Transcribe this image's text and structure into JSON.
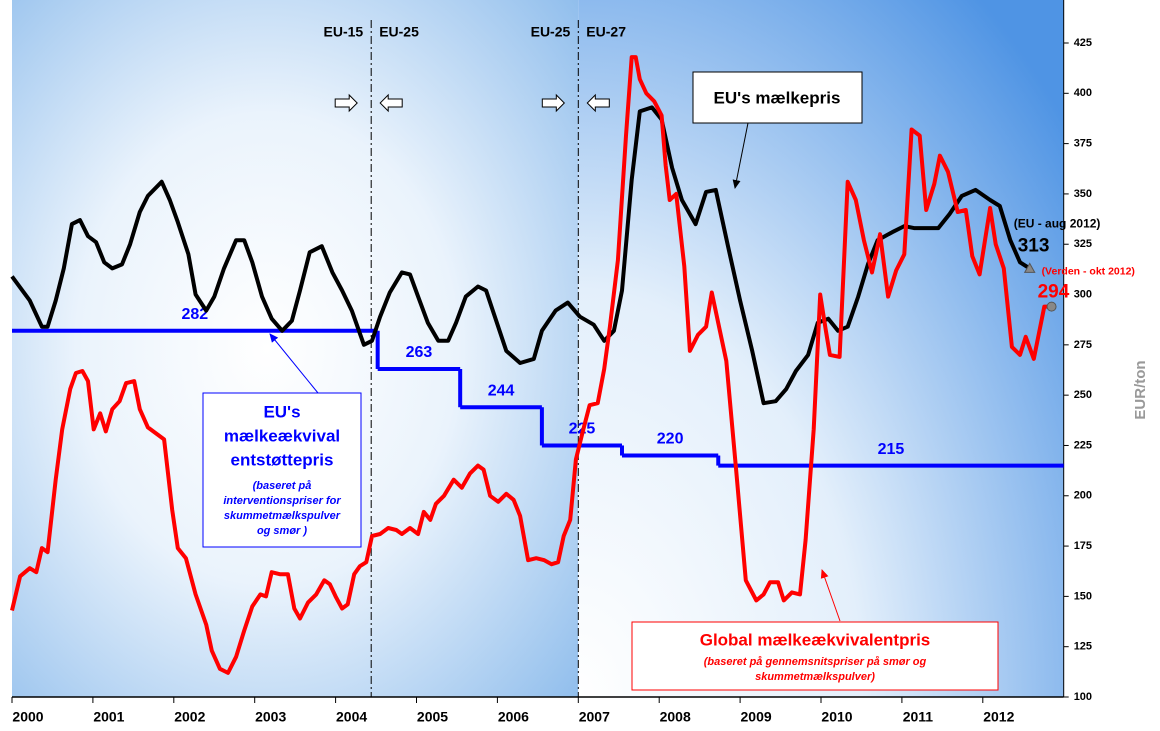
{
  "chart_data": {
    "type": "line",
    "xlim": [
      2000,
      2013
    ],
    "ylim": [
      100,
      425
    ],
    "xticks": [
      2000,
      2001,
      2002,
      2003,
      2004,
      2005,
      2006,
      2007,
      2008,
      2009,
      2010,
      2011,
      2012
    ],
    "yticks": [
      100,
      125,
      150,
      175,
      200,
      225,
      250,
      275,
      300,
      325,
      350,
      375,
      400,
      425
    ],
    "y_label": "EUR/ton",
    "series": [
      {
        "name": "EU's mælkepris",
        "color": "#000000",
        "x": [
          2000.0,
          2000.22,
          2000.37,
          2000.44,
          2000.54,
          2000.64,
          2000.74,
          2000.84,
          2000.94,
          2001.04,
          2001.14,
          2001.24,
          2001.36,
          2001.46,
          2001.58,
          2001.68,
          2001.85,
          2001.95,
          2002.05,
          2002.18,
          2002.27,
          2002.4,
          2002.5,
          2002.62,
          2002.77,
          2002.87,
          2002.97,
          2003.09,
          2003.21,
          2003.34,
          2003.46,
          2003.56,
          2003.68,
          2003.83,
          2003.96,
          2004.08,
          2004.2,
          2004.35,
          2004.45,
          2004.55,
          2004.67,
          2004.82,
          2004.92,
          2005.02,
          2005.14,
          2005.27,
          2005.39,
          2005.49,
          2005.61,
          2005.76,
          2005.86,
          2005.96,
          2006.11,
          2006.28,
          2006.45,
          2006.55,
          2006.72,
          2006.87,
          2007.02,
          2007.19,
          2007.32,
          2007.44,
          2007.54,
          2007.66,
          2007.76,
          2007.91,
          2008.03,
          2008.16,
          2008.28,
          2008.45,
          2008.58,
          2008.7,
          2008.85,
          2009.0,
          2009.15,
          2009.29,
          2009.44,
          2009.57,
          2009.69,
          2009.84,
          2009.96,
          2010.09,
          2010.21,
          2010.33,
          2010.46,
          2010.58,
          2010.7,
          2010.88,
          2011.03,
          2011.15,
          2011.32,
          2011.45,
          2011.59,
          2011.74,
          2011.91,
          2012.09,
          2012.21,
          2012.34,
          2012.46,
          2012.58
        ],
        "values": [
          309,
          297,
          284,
          284,
          297,
          313,
          335,
          337,
          329,
          326,
          316,
          313,
          315,
          325,
          341,
          349,
          356,
          347,
          336,
          320,
          300,
          292,
          299,
          313,
          327,
          327,
          316,
          299,
          288,
          282,
          287,
          302,
          321,
          324,
          311,
          302,
          292,
          275,
          277,
          289,
          301,
          311,
          310,
          299,
          286,
          277,
          277,
          286,
          299,
          304,
          302,
          290,
          272,
          266,
          268,
          282,
          292,
          296,
          289,
          285,
          277,
          282,
          302,
          357,
          391,
          393,
          387,
          363,
          347,
          335,
          351,
          352,
          324,
          297,
          272,
          246,
          247,
          253,
          262,
          270,
          286,
          288,
          282,
          284,
          299,
          315,
          327,
          331,
          334,
          333,
          333,
          333,
          340,
          349,
          352,
          347,
          344,
          327,
          316,
          313
        ]
      },
      {
        "name": "Global mælkeækvivalentpris",
        "color": "#ff0000",
        "note_lines": [
          "(baseret på gennemsnitspriser på smør og",
          "skummetmælkspulver)"
        ],
        "x": [
          2000.0,
          2000.1,
          2000.22,
          2000.3,
          2000.37,
          2000.44,
          2000.54,
          2000.62,
          2000.72,
          2000.79,
          2000.87,
          2000.94,
          2001.01,
          2001.09,
          2001.16,
          2001.24,
          2001.33,
          2001.41,
          2001.51,
          2001.58,
          2001.68,
          2001.78,
          2001.88,
          2001.98,
          2002.05,
          2002.15,
          2002.27,
          2002.4,
          2002.47,
          2002.57,
          2002.67,
          2002.77,
          2002.87,
          2002.97,
          2003.07,
          2003.14,
          2003.21,
          2003.31,
          2003.41,
          2003.49,
          2003.56,
          2003.66,
          2003.76,
          2003.86,
          2003.93,
          2004.0,
          2004.08,
          2004.15,
          2004.23,
          2004.3,
          2004.38,
          2004.45,
          2004.55,
          2004.65,
          2004.75,
          2004.82,
          2004.92,
          2005.02,
          2005.09,
          2005.17,
          2005.24,
          2005.34,
          2005.46,
          2005.56,
          2005.66,
          2005.76,
          2005.83,
          2005.91,
          2006.01,
          2006.11,
          2006.2,
          2006.28,
          2006.38,
          2006.48,
          2006.58,
          2006.67,
          2006.75,
          2006.82,
          2006.9,
          2006.97,
          2007.05,
          2007.14,
          2007.24,
          2007.32,
          2007.39,
          2007.49,
          2007.59,
          2007.66,
          2007.71,
          2007.76,
          2007.84,
          2007.94,
          2008.03,
          2008.08,
          2008.13,
          2008.21,
          2008.31,
          2008.38,
          2008.48,
          2008.58,
          2008.65,
          2008.75,
          2008.83,
          2008.95,
          2009.07,
          2009.2,
          2009.29,
          2009.37,
          2009.47,
          2009.54,
          2009.64,
          2009.74,
          2009.81,
          2009.91,
          2009.99,
          2010.06,
          2010.11,
          2010.23,
          2010.33,
          2010.43,
          2010.53,
          2010.63,
          2010.73,
          2010.83,
          2010.93,
          2011.03,
          2011.12,
          2011.22,
          2011.3,
          2011.4,
          2011.47,
          2011.57,
          2011.69,
          2011.79,
          2011.87,
          2011.96,
          2012.09,
          2012.16,
          2012.26,
          2012.36,
          2012.46,
          2012.53,
          2012.63,
          2012.76,
          2012.85
        ],
        "values": [
          143,
          160,
          164,
          162,
          174,
          172,
          208,
          233,
          253,
          261,
          262,
          257,
          233,
          241,
          232,
          243,
          247,
          256,
          257,
          243,
          234,
          231,
          228,
          193,
          174,
          169,
          151,
          136,
          123,
          114,
          112,
          120,
          133,
          145,
          151,
          150,
          162,
          161,
          161,
          144,
          139,
          147,
          151,
          158,
          156,
          150,
          144,
          146,
          161,
          165,
          167,
          180,
          181,
          184,
          183,
          181,
          184,
          181,
          192,
          188,
          196,
          200,
          208,
          204,
          211,
          215,
          213,
          200,
          197,
          201,
          198,
          190,
          168,
          169,
          168,
          166,
          167,
          180,
          188,
          218,
          231,
          245,
          246,
          263,
          284,
          317,
          379,
          418,
          418,
          407,
          400,
          396,
          389,
          364,
          347,
          350,
          314,
          272,
          280,
          284,
          301,
          282,
          267,
          213,
          158,
          148,
          151,
          157,
          157,
          148,
          152,
          151,
          178,
          233,
          300,
          282,
          270,
          269,
          356,
          347,
          327,
          311,
          330,
          299,
          312,
          320,
          382,
          379,
          342,
          355,
          369,
          361,
          341,
          342,
          319,
          310,
          343,
          325,
          313,
          274,
          270,
          279,
          268,
          294,
          294
        ]
      }
    ],
    "support_price": {
      "title_lines": [
        "EU's",
        "mælkeækvival",
        "entstøttepris"
      ],
      "note_lines": [
        "(baseret på",
        "interventionspriser for",
        "skummetmælkspulver",
        "og smør )"
      ],
      "color": "#0000ff",
      "steps": [
        {
          "start": 2000,
          "end": 2004.52,
          "value": 282
        },
        {
          "start": 2004.52,
          "end": 2005.54,
          "value": 263
        },
        {
          "start": 2005.54,
          "end": 2006.55,
          "value": 244
        },
        {
          "start": 2006.55,
          "end": 2007.54,
          "value": 225
        },
        {
          "start": 2007.54,
          "end": 2008.73,
          "value": 220
        },
        {
          "start": 2008.73,
          "end": 2013,
          "value": 215
        }
      ]
    },
    "events": [
      {
        "x": 2004.44,
        "labels": [
          "EU-15",
          "EU-25"
        ]
      },
      {
        "x": 2007.0,
        "labels": [
          "EU-25",
          "EU-27"
        ]
      }
    ],
    "end_labels": [
      {
        "caption": "(EU - aug 2012)",
        "x": 2012.58,
        "value": 313,
        "color": "#000000"
      },
      {
        "caption": "(Verden - okt 2012)",
        "x": 2012.85,
        "value": 294,
        "color": "#ff0000"
      }
    ]
  }
}
